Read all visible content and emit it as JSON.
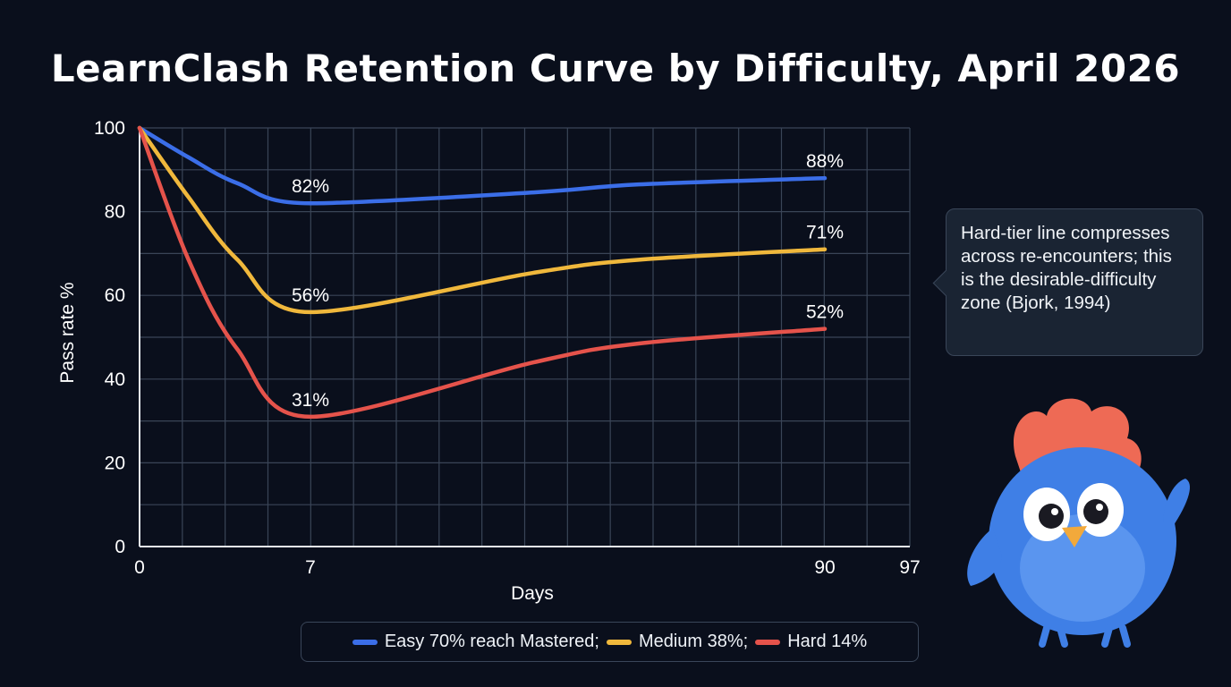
{
  "chart_data": {
    "type": "line",
    "title": "LearnClash Retention Curve by Difficulty, April 2026",
    "xlabel": "Days",
    "ylabel": "Pass rate %",
    "xticks": [
      0,
      7,
      90,
      97
    ],
    "yticks": [
      0,
      20,
      40,
      60,
      80,
      100
    ],
    "ylim": [
      0,
      100
    ],
    "xlim": [
      0,
      97
    ],
    "grid": true,
    "legend_placement": "bottom",
    "series": [
      {
        "name": "Easy 70% reach Mastered;",
        "color": "#3b6ee8",
        "x": [
          0,
          2,
          4,
          7,
          43,
          60,
          90
        ],
        "y": [
          100,
          93,
          86.8,
          82,
          84.6,
          86.5,
          88
        ],
        "labels": [
          {
            "x": 7,
            "y": 82,
            "text": "82%"
          },
          {
            "x": 90,
            "y": 88,
            "text": "88%"
          }
        ]
      },
      {
        "name": "Medium 38%;",
        "color": "#f0b83c",
        "x": [
          0,
          2,
          4,
          7,
          43,
          60,
          90
        ],
        "y": [
          100,
          83.5,
          68.6,
          56,
          65.4,
          68.5,
          71
        ],
        "labels": [
          {
            "x": 7,
            "y": 56,
            "text": "56%"
          },
          {
            "x": 90,
            "y": 71,
            "text": "71%"
          }
        ]
      },
      {
        "name": "Hard 14%",
        "color": "#e5534b",
        "x": [
          0,
          2,
          4,
          7,
          43,
          60,
          90
        ],
        "y": [
          100,
          68.6,
          47.2,
          31,
          44,
          48.5,
          52
        ],
        "labels": [
          {
            "x": 7,
            "y": 31,
            "text": "31%"
          },
          {
            "x": 90,
            "y": 52,
            "text": "52%"
          }
        ]
      }
    ],
    "annotation": "Hard-tier line compresses across re-encounters; this is the desirable-difficulty zone (Bjork, 1994)"
  },
  "mascot": "blue-bird-mascot"
}
